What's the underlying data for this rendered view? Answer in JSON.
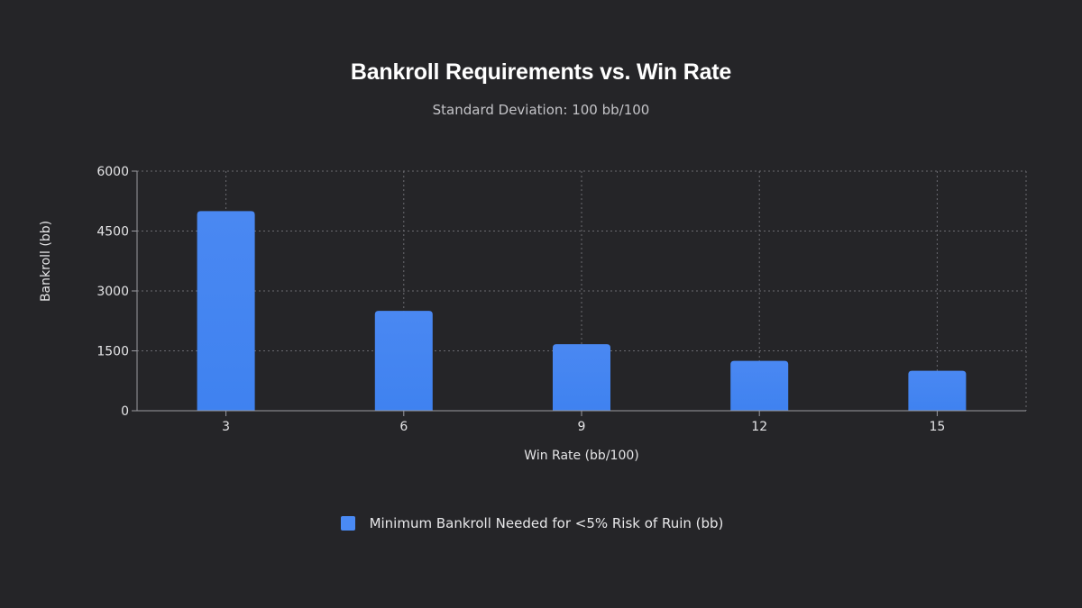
{
  "chart_data": {
    "type": "bar",
    "title": "Bankroll Requirements vs. Win Rate",
    "subtitle": "Standard Deviation: 100 bb/100",
    "xlabel": "Win Rate (bb/100)",
    "ylabel": "Bankroll (bb)",
    "categories": [
      "3",
      "6",
      "9",
      "12",
      "15"
    ],
    "series": [
      {
        "name": "Minimum Bankroll Needed for <5% Risk of Ruin (bb)",
        "values": [
          5000,
          2500,
          1667,
          1250,
          1000
        ]
      }
    ],
    "ylim": [
      0,
      6000
    ],
    "yticks": [
      "0",
      "1500",
      "3000",
      "4500",
      "6000"
    ],
    "grid": true,
    "legend": "bottom-center",
    "colors": {
      "bar": "#4a8af4",
      "bar_light": "#5a96f8",
      "grid": "#6a6a70",
      "axis": "#9a9aa0",
      "background": "#252528"
    }
  }
}
